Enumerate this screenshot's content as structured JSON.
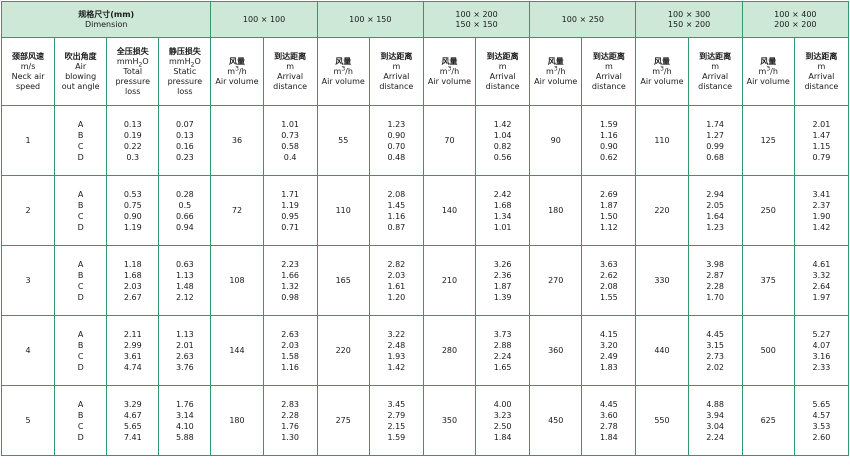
{
  "header": {
    "spec_zh": "规格尺寸(mm)",
    "spec_en": "Dimension",
    "sizes": [
      {
        "line1": "100 × 100",
        "line2": ""
      },
      {
        "line1": "100 × 150",
        "line2": ""
      },
      {
        "line1": "100 × 200",
        "line2": "150 × 150"
      },
      {
        "line1": "100 × 250",
        "line2": ""
      },
      {
        "line1": "100 × 300",
        "line2": "150 × 200"
      },
      {
        "line1": "100 × 400",
        "line2": "200 × 200"
      }
    ],
    "neck_speed": {
      "zh": "颈部风速",
      "unit": "m/s",
      "en1": "Neck air",
      "en2": "speed"
    },
    "blow_angle": {
      "zh": "吹出角度",
      "en1": "Air",
      "en2": "blowing",
      "en3": "out angle"
    },
    "total_loss": {
      "zh": "全压损失",
      "unit": "mmH",
      "en1": "Total",
      "en2": "pressure",
      "en3": "loss"
    },
    "static_loss": {
      "zh": "静压损失",
      "unit": "mmH",
      "en1": "Static",
      "en2": "pressure",
      "en3": "loss"
    },
    "air_volume": {
      "zh": "风量",
      "unit": "m",
      "unit_suffix": "/h",
      "en": "Air volume"
    },
    "arrival": {
      "zh": "到达距离",
      "unit": "m",
      "en1": "Arrival",
      "en2": "distance"
    }
  },
  "rows": [
    {
      "speed": "1",
      "angles": [
        "A",
        "B",
        "C",
        "D"
      ],
      "total": [
        "0.13",
        "0.19",
        "0.22",
        "0.3"
      ],
      "static": [
        "0.07",
        "0.13",
        "0.16",
        "0.23"
      ],
      "groups": [
        {
          "volume": "36",
          "distance": [
            "1.01",
            "0.73",
            "0.58",
            "0.4"
          ]
        },
        {
          "volume": "55",
          "distance": [
            "1.23",
            "0.90",
            "0.70",
            "0.48"
          ]
        },
        {
          "volume": "70",
          "distance": [
            "1.42",
            "1.04",
            "0.82",
            "0.56"
          ]
        },
        {
          "volume": "90",
          "distance": [
            "1.59",
            "1.16",
            "0.90",
            "0.62"
          ]
        },
        {
          "volume": "110",
          "distance": [
            "1.74",
            "1.27",
            "0.99",
            "0.68"
          ]
        },
        {
          "volume": "125",
          "distance": [
            "2.01",
            "1.47",
            "1.15",
            "0.79"
          ]
        }
      ]
    },
    {
      "speed": "2",
      "angles": [
        "A",
        "B",
        "C",
        "D"
      ],
      "total": [
        "0.53",
        "0.75",
        "0.90",
        "1.19"
      ],
      "static": [
        "0.28",
        "0.5",
        "0.66",
        "0.94"
      ],
      "groups": [
        {
          "volume": "72",
          "distance": [
            "1.71",
            "1.19",
            "0.95",
            "0.71"
          ]
        },
        {
          "volume": "110",
          "distance": [
            "2.08",
            "1.45",
            "1.16",
            "0.87"
          ]
        },
        {
          "volume": "140",
          "distance": [
            "2.42",
            "1.68",
            "1.34",
            "1.01"
          ]
        },
        {
          "volume": "180",
          "distance": [
            "2.69",
            "1.87",
            "1.50",
            "1.12"
          ]
        },
        {
          "volume": "220",
          "distance": [
            "2.94",
            "2.05",
            "1.64",
            "1.23"
          ]
        },
        {
          "volume": "250",
          "distance": [
            "3.41",
            "2.37",
            "1.90",
            "1.42"
          ]
        }
      ]
    },
    {
      "speed": "3",
      "angles": [
        "A",
        "B",
        "C",
        "D"
      ],
      "total": [
        "1.18",
        "1.68",
        "2.03",
        "2.67"
      ],
      "static": [
        "0.63",
        "1.13",
        "1.48",
        "2.12"
      ],
      "groups": [
        {
          "volume": "108",
          "distance": [
            "2.23",
            "1.66",
            "1.32",
            "0.98"
          ]
        },
        {
          "volume": "165",
          "distance": [
            "2.82",
            "2.03",
            "1.61",
            "1.20"
          ]
        },
        {
          "volume": "210",
          "distance": [
            "3.26",
            "2.36",
            "1.87",
            "1.39"
          ]
        },
        {
          "volume": "270",
          "distance": [
            "3.63",
            "2.62",
            "2.08",
            "1.55"
          ]
        },
        {
          "volume": "330",
          "distance": [
            "3.98",
            "2.87",
            "2.28",
            "1.70"
          ]
        },
        {
          "volume": "375",
          "distance": [
            "4.61",
            "3.32",
            "2.64",
            "1.97"
          ]
        }
      ]
    },
    {
      "speed": "4",
      "angles": [
        "A",
        "B",
        "C",
        "D"
      ],
      "total": [
        "2.11",
        "2.99",
        "3.61",
        "4.74"
      ],
      "static": [
        "1.13",
        "2.01",
        "2.63",
        "3.76"
      ],
      "groups": [
        {
          "volume": "144",
          "distance": [
            "2.63",
            "2.03",
            "1.58",
            "1.16"
          ]
        },
        {
          "volume": "220",
          "distance": [
            "3.22",
            "2.48",
            "1.93",
            "1.42"
          ]
        },
        {
          "volume": "280",
          "distance": [
            "3.73",
            "2.88",
            "2.24",
            "1.65"
          ]
        },
        {
          "volume": "360",
          "distance": [
            "4.15",
            "3.20",
            "2.49",
            "1.83"
          ]
        },
        {
          "volume": "440",
          "distance": [
            "4.45",
            "3.15",
            "2.73",
            "2.02"
          ]
        },
        {
          "volume": "500",
          "distance": [
            "5.27",
            "4.07",
            "3.16",
            "2.33"
          ]
        }
      ]
    },
    {
      "speed": "5",
      "angles": [
        "A",
        "B",
        "C",
        "D"
      ],
      "total": [
        "3.29",
        "4.67",
        "5.65",
        "7.41"
      ],
      "static": [
        "1.76",
        "3.14",
        "4.10",
        "5.88"
      ],
      "groups": [
        {
          "volume": "180",
          "distance": [
            "2.83",
            "2.28",
            "1.76",
            "1.30"
          ]
        },
        {
          "volume": "275",
          "distance": [
            "3.45",
            "2.79",
            "2.15",
            "1.59"
          ]
        },
        {
          "volume": "350",
          "distance": [
            "4.00",
            "3.23",
            "2.50",
            "1.84"
          ]
        },
        {
          "volume": "450",
          "distance": [
            "4.45",
            "3.60",
            "2.78",
            "1.84"
          ]
        },
        {
          "volume": "550",
          "distance": [
            "4.88",
            "3.94",
            "3.04",
            "2.24"
          ]
        },
        {
          "volume": "625",
          "distance": [
            "5.65",
            "4.57",
            "3.53",
            "2.60"
          ]
        }
      ]
    }
  ]
}
